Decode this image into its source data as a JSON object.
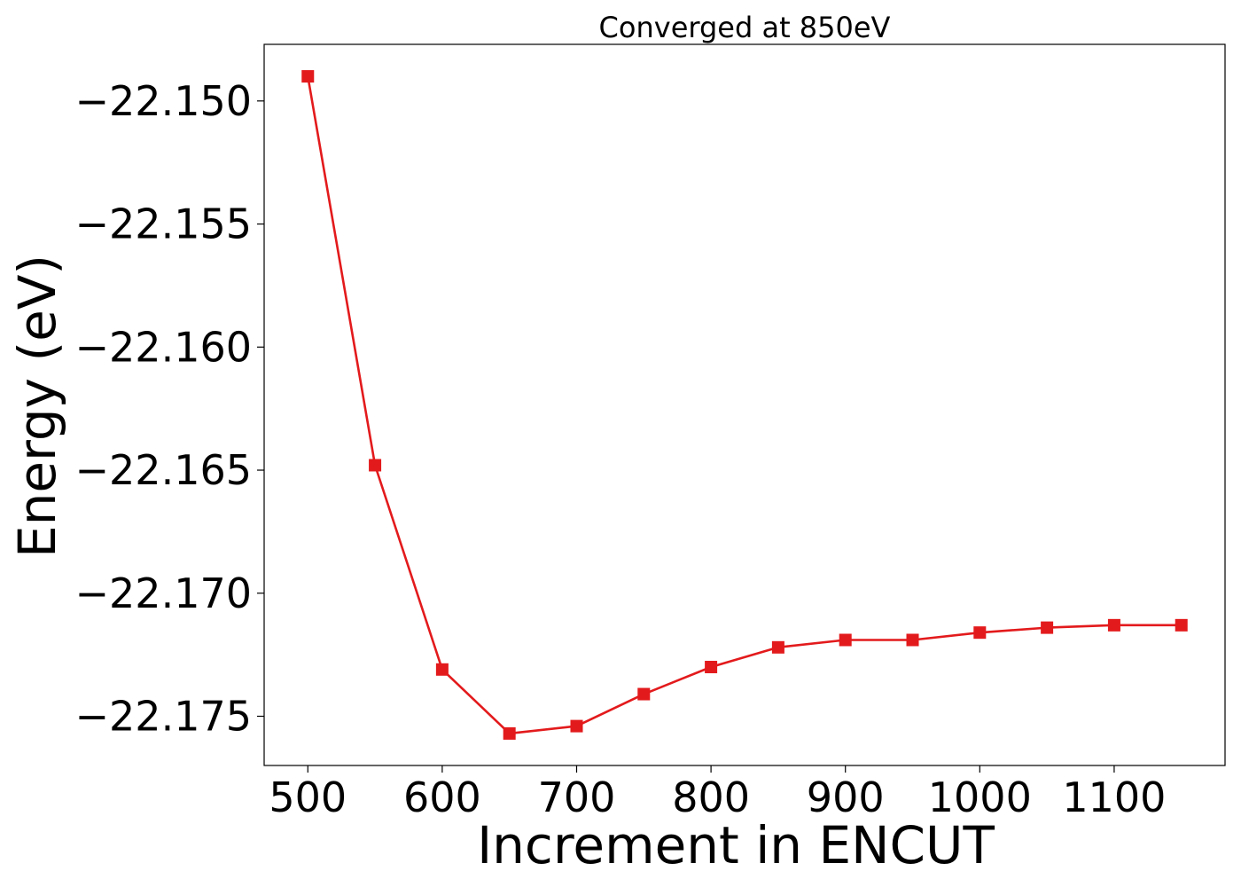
{
  "chart_data": {
    "type": "line",
    "title": "Converged at 850eV",
    "xlabel": "Increment in ENCUT",
    "ylabel": "Energy (eV)",
    "x": [
      500,
      550,
      600,
      650,
      700,
      750,
      800,
      850,
      900,
      950,
      1000,
      1050,
      1100,
      1150
    ],
    "series": [
      {
        "values": [
          -22.149,
          -22.1648,
          -22.1731,
          -22.1757,
          -22.1754,
          -22.1741,
          -22.173,
          -22.1722,
          -22.1719,
          -22.1719,
          -22.1716,
          -22.1714,
          -22.1713,
          -22.1713
        ],
        "color": "#e31a1c",
        "marker": "square"
      }
    ],
    "xlim": [
      467.5,
      1182.5
    ],
    "ylim": [
      -22.177,
      -22.1477
    ],
    "xticks": [
      500,
      600,
      700,
      800,
      900,
      1000,
      1100
    ],
    "xtick_labels": [
      "500",
      "600",
      "700",
      "800",
      "900",
      "1000",
      "1100"
    ],
    "yticks": [
      -22.15,
      -22.155,
      -22.16,
      -22.165,
      -22.17,
      -22.175
    ],
    "ytick_labels": [
      "−22.150",
      "−22.155",
      "−22.160",
      "−22.165",
      "−22.170",
      "−22.175"
    ],
    "grid": false,
    "legend": "none"
  }
}
